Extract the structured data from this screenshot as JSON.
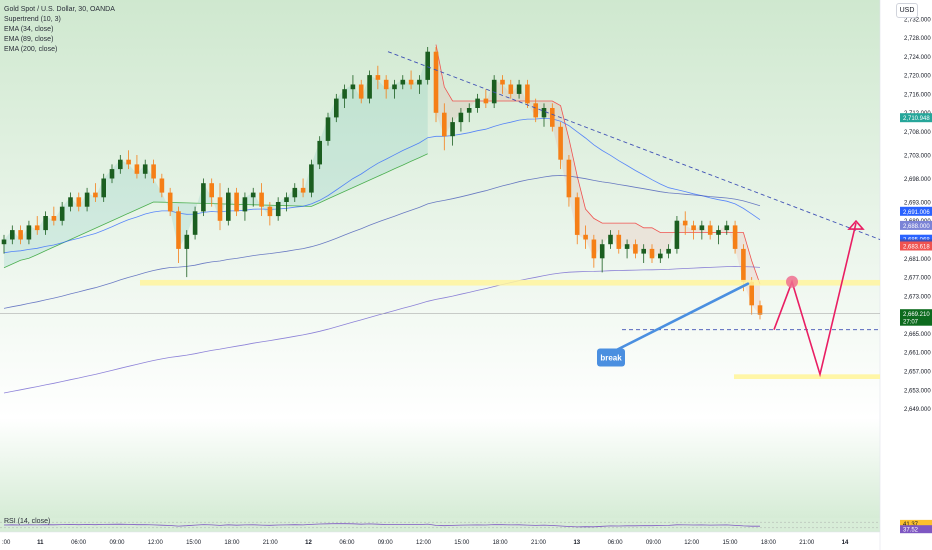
{
  "header": {
    "symbol_title": "Gold Spot / U.S. Dollar, 30, OANDA",
    "indicators": [
      "Supertrend (10, 3)",
      "EMA (34, close)",
      "EMA (89, close)",
      "EMA (200, close)"
    ],
    "currency": "USD"
  },
  "rsi": {
    "label": "RSI (14, close)",
    "value_a": "41.37",
    "value_b": "37.52"
  },
  "chart_data": {
    "type": "candlestick",
    "ylim": [
      2647,
      2736
    ],
    "y_ticks": [
      "2,732.000",
      "2,728.000",
      "2,724.000",
      "2,720.000",
      "2,716.000",
      "2,712.000",
      "2,708.000",
      "2,703.000",
      "2,698.000",
      "2,693.000",
      "2,689.000",
      "2,685.000",
      "2,681.000",
      "2,677.000",
      "2,673.000",
      "2,669.000",
      "2,665.000",
      "2,661.000",
      "2,657.000",
      "2,653.000",
      "2,649.000"
    ],
    "x_ticks": [
      ":00",
      "11",
      "06:00",
      "09:00",
      "12:00",
      "15:00",
      "18:00",
      "21:00",
      "12",
      "06:00",
      "09:00",
      "12:00",
      "15:00",
      "18:00",
      "21:00",
      "13",
      "06:00",
      "09:00",
      "12:00",
      "15:00",
      "18:00",
      "21:00",
      "14"
    ],
    "candles": [
      [
        2684,
        2686,
        2682,
        2685
      ],
      [
        2685,
        2688,
        2684,
        2687
      ],
      [
        2687,
        2688,
        2684,
        2685
      ],
      [
        2685,
        2689,
        2684,
        2688
      ],
      [
        2688,
        2690,
        2686,
        2687
      ],
      [
        2687,
        2691,
        2686,
        2690
      ],
      [
        2690,
        2692,
        2688,
        2689
      ],
      [
        2689,
        2693,
        2688,
        2692
      ],
      [
        2692,
        2695,
        2691,
        2694
      ],
      [
        2694,
        2695,
        2691,
        2692
      ],
      [
        2692,
        2696,
        2691,
        2695
      ],
      [
        2695,
        2697,
        2693,
        2694
      ],
      [
        2694,
        2699,
        2693,
        2698
      ],
      [
        2698,
        2701,
        2697,
        2700
      ],
      [
        2700,
        2703,
        2699,
        2702
      ],
      [
        2702,
        2704,
        2700,
        2701
      ],
      [
        2701,
        2703,
        2698,
        2699
      ],
      [
        2699,
        2702,
        2698,
        2701
      ],
      [
        2701,
        2702,
        2697,
        2698
      ],
      [
        2698,
        2699,
        2694,
        2695
      ],
      [
        2695,
        2696,
        2690,
        2691
      ],
      [
        2691,
        2692,
        2680,
        2683
      ],
      [
        2683,
        2687,
        2677,
        2686
      ],
      [
        2686,
        2692,
        2685,
        2691
      ],
      [
        2691,
        2698,
        2690,
        2697
      ],
      [
        2697,
        2698,
        2692,
        2694
      ],
      [
        2694,
        2697,
        2687,
        2689
      ],
      [
        2689,
        2696,
        2688,
        2695
      ],
      [
        2695,
        2696,
        2690,
        2691
      ],
      [
        2691,
        2695,
        2689,
        2694
      ],
      [
        2694,
        2696,
        2692,
        2695
      ],
      [
        2695,
        2697,
        2690,
        2692
      ],
      [
        2692,
        2693,
        2688,
        2690
      ],
      [
        2690,
        2694,
        2689,
        2693
      ],
      [
        2693,
        2695,
        2691,
        2694
      ],
      [
        2694,
        2697,
        2693,
        2696
      ],
      [
        2696,
        2698,
        2694,
        2695
      ],
      [
        2695,
        2702,
        2694,
        2701
      ],
      [
        2701,
        2707,
        2700,
        2706
      ],
      [
        2706,
        2712,
        2705,
        2711
      ],
      [
        2711,
        2716,
        2710,
        2715
      ],
      [
        2715,
        2718,
        2713,
        2717
      ],
      [
        2717,
        2720,
        2715,
        2718
      ],
      [
        2718,
        2719,
        2714,
        2715
      ],
      [
        2715,
        2721,
        2714,
        2720
      ],
      [
        2720,
        2722,
        2717,
        2719
      ],
      [
        2719,
        2720,
        2715,
        2717
      ],
      [
        2717,
        2719,
        2715,
        2718
      ],
      [
        2718,
        2720,
        2717,
        2719
      ],
      [
        2719,
        2721,
        2717,
        2718
      ],
      [
        2718,
        2720,
        2716,
        2719
      ],
      [
        2719,
        2726,
        2718,
        2725
      ],
      [
        2725,
        2726,
        2710,
        2712
      ],
      [
        2712,
        2714,
        2704,
        2707
      ],
      [
        2707,
        2711,
        2705,
        2710
      ],
      [
        2710,
        2713,
        2708,
        2712
      ],
      [
        2712,
        2714,
        2710,
        2713
      ],
      [
        2713,
        2716,
        2712,
        2715
      ],
      [
        2715,
        2717,
        2713,
        2714
      ],
      [
        2714,
        2720,
        2713,
        2719
      ],
      [
        2719,
        2720,
        2716,
        2718
      ],
      [
        2718,
        2719,
        2715,
        2716
      ],
      [
        2716,
        2719,
        2715,
        2718
      ],
      [
        2718,
        2719,
        2713,
        2714
      ],
      [
        2714,
        2715,
        2710,
        2711
      ],
      [
        2711,
        2714,
        2709,
        2713
      ],
      [
        2713,
        2714,
        2708,
        2709
      ],
      [
        2709,
        2710,
        2700,
        2702
      ],
      [
        2702,
        2703,
        2692,
        2694
      ],
      [
        2694,
        2695,
        2684,
        2686
      ],
      [
        2686,
        2688,
        2683,
        2685
      ],
      [
        2685,
        2686,
        2679,
        2681
      ],
      [
        2681,
        2685,
        2678,
        2684
      ],
      [
        2684,
        2687,
        2683,
        2686
      ],
      [
        2686,
        2687,
        2682,
        2683
      ],
      [
        2683,
        2685,
        2681,
        2684
      ],
      [
        2684,
        2685,
        2681,
        2682
      ],
      [
        2682,
        2684,
        2680,
        2683
      ],
      [
        2683,
        2684,
        2680,
        2681
      ],
      [
        2681,
        2683,
        2680,
        2682
      ],
      [
        2682,
        2684,
        2681,
        2683
      ],
      [
        2683,
        2690,
        2682,
        2689
      ],
      [
        2689,
        2691,
        2686,
        2688
      ],
      [
        2688,
        2689,
        2685,
        2687
      ],
      [
        2687,
        2689,
        2685,
        2688
      ],
      [
        2688,
        2689,
        2685,
        2686
      ],
      [
        2686,
        2688,
        2684,
        2687
      ],
      [
        2687,
        2689,
        2686,
        2688
      ],
      [
        2688,
        2689,
        2682,
        2683
      ],
      [
        2683,
        2684,
        2674,
        2676
      ],
      [
        2676,
        2677,
        2669,
        2671
      ],
      [
        2671,
        2672,
        2668,
        2669
      ]
    ],
    "annotations": {
      "break_label": "break",
      "price_labels": [
        {
          "text": "2,710.948",
          "value": 2710.948,
          "color": "#26a69a"
        },
        {
          "text": "2,691.006",
          "value": 2691.006,
          "color": "#2962ff"
        },
        {
          "text": "2,688.000",
          "value": 2688.0,
          "color": "#7b83d6"
        },
        {
          "text": "2,685.068",
          "value": 2685.068,
          "color": "#2962ff"
        },
        {
          "text": "2,684.077",
          "value": 2684.077,
          "color": "#3f51b5"
        },
        {
          "text": "2,683.618",
          "value": 2683.618,
          "color": "#ef5350"
        },
        {
          "text": "2,669.210",
          "value": 2669.21,
          "color": "#0d6b1e"
        },
        {
          "text": "27:07",
          "value": 2667.6,
          "color": "#0d6b1e"
        }
      ]
    }
  }
}
